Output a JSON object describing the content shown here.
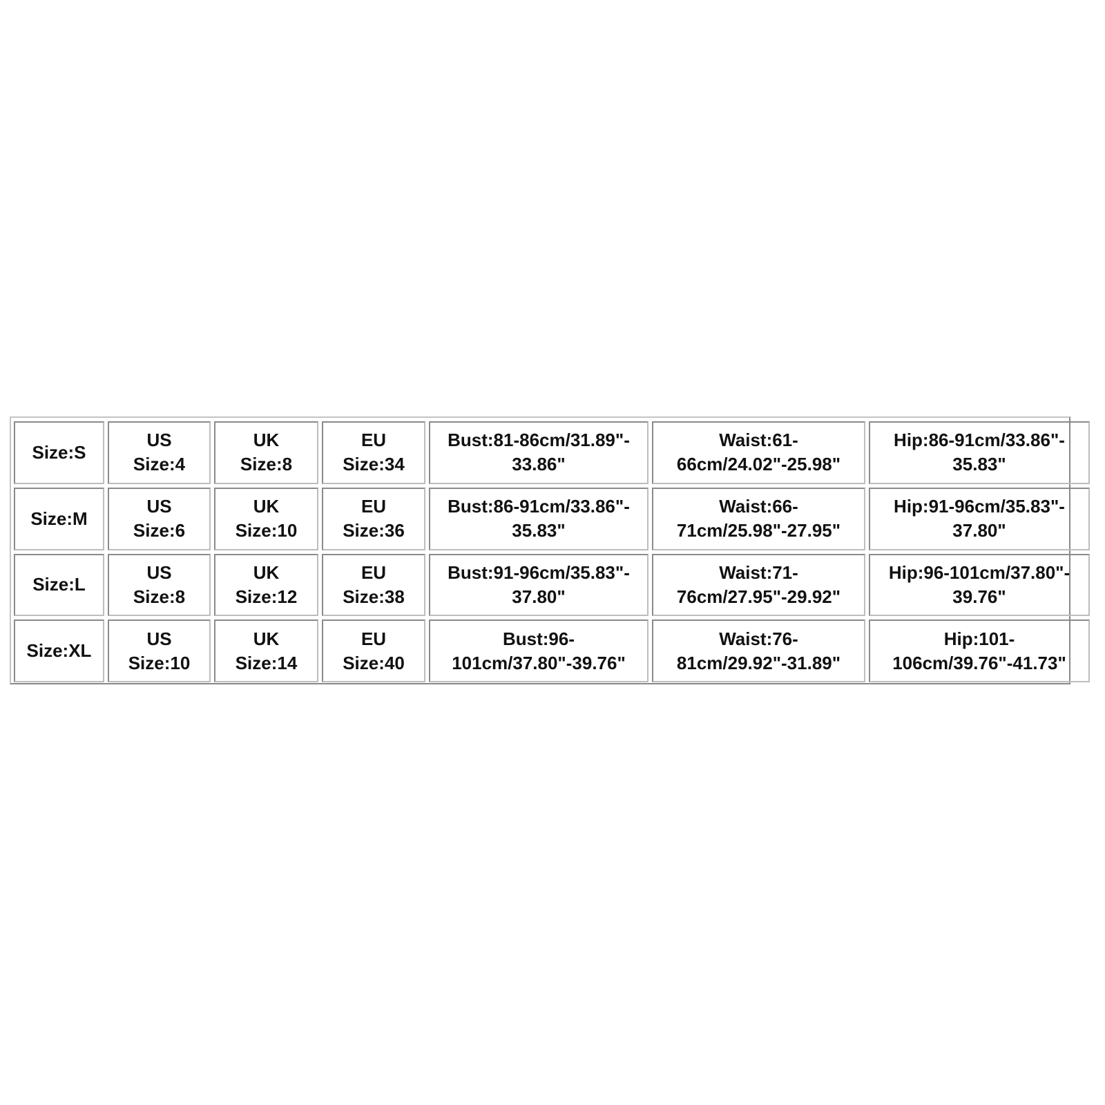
{
  "size_chart": {
    "rows": [
      {
        "size": "Size:S",
        "us": [
          "US",
          "Size:4"
        ],
        "uk": [
          "UK",
          "Size:8"
        ],
        "eu": [
          "EU",
          "Size:34"
        ],
        "bust": [
          "Bust:81-86cm/31.89\"-",
          "33.86\""
        ],
        "waist": [
          "Waist:61-",
          "66cm/24.02\"-25.98\""
        ],
        "hip": [
          "Hip:86-91cm/33.86\"-",
          "35.83\""
        ]
      },
      {
        "size": "Size:M",
        "us": [
          "US",
          "Size:6"
        ],
        "uk": [
          "UK",
          "Size:10"
        ],
        "eu": [
          "EU",
          "Size:36"
        ],
        "bust": [
          "Bust:86-91cm/33.86\"-",
          "35.83\""
        ],
        "waist": [
          "Waist:66-",
          "71cm/25.98\"-27.95\""
        ],
        "hip": [
          "Hip:91-96cm/35.83\"-",
          "37.80\""
        ]
      },
      {
        "size": "Size:L",
        "us": [
          "US",
          "Size:8"
        ],
        "uk": [
          "UK",
          "Size:12"
        ],
        "eu": [
          "EU",
          "Size:38"
        ],
        "bust": [
          "Bust:91-96cm/35.83\"-",
          "37.80\""
        ],
        "waist": [
          "Waist:71-",
          "76cm/27.95\"-29.92\""
        ],
        "hip": [
          "Hip:96-101cm/37.80\"-",
          "39.76\""
        ]
      },
      {
        "size": "Size:XL",
        "us": [
          "US",
          "Size:10"
        ],
        "uk": [
          "UK",
          "Size:14"
        ],
        "eu": [
          "EU",
          "Size:40"
        ],
        "bust": [
          "Bust:96-",
          "101cm/37.80\"-39.76\""
        ],
        "waist": [
          "Waist:76-",
          "81cm/29.92\"-31.89\""
        ],
        "hip": [
          "Hip:101-",
          "106cm/39.76\"-41.73\""
        ]
      }
    ]
  }
}
